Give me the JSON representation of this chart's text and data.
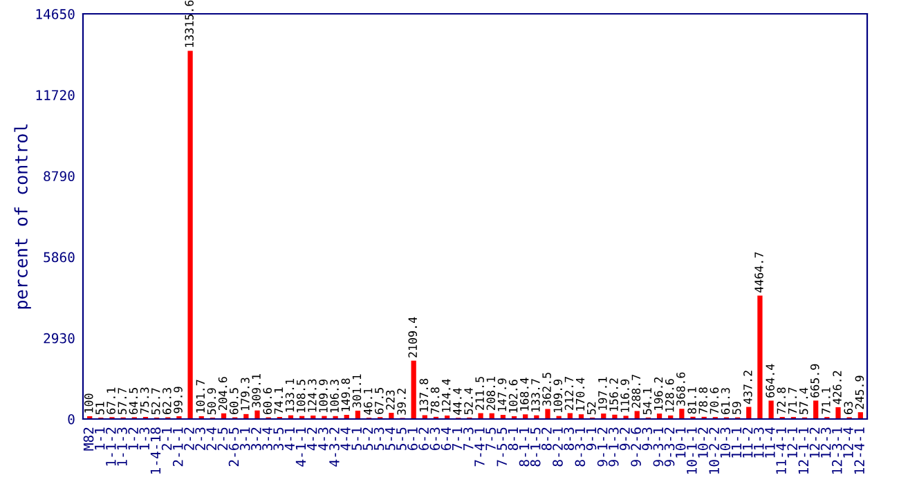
{
  "chart_data": {
    "type": "bar",
    "ylabel": "percent of control",
    "categories": [
      "M82",
      "1-1",
      "1-1-2",
      "1-1-3",
      "1-2",
      "1-3",
      "1-4-18",
      "2-1",
      "2-1-1",
      "2-2",
      "2-3",
      "2-4",
      "2-5",
      "2-6-5",
      "3-1",
      "3-2",
      "3-4",
      "3-5",
      "4-1",
      "4-1-1",
      "4-2",
      "4-3",
      "4-3-2",
      "4-4",
      "5-1",
      "5-2",
      "5-3",
      "5-4",
      "5-5",
      "6-1",
      "6-2",
      "6-3",
      "6-4",
      "7-1",
      "7-3",
      "7-4-1",
      "7-5",
      "7-5-5",
      "8-1",
      "8-1-1",
      "8-1-5",
      "8-2",
      "8-2-1",
      "8-3",
      "8-3-1",
      "9-1",
      "9-1-2",
      "9-1-3",
      "9-2",
      "9-2-6",
      "9-3",
      "9-3-1",
      "9-3-2",
      "10-1",
      "10-1-1",
      "10-2",
      "10-2-2",
      "10-3",
      "11-1",
      "11-2",
      "11-3",
      "11-4",
      "11-4-1",
      "12-1",
      "12-1-1",
      "12-2",
      "12-3",
      "12-3-1",
      "12-4",
      "12-4-1"
    ],
    "values": [
      100,
      51,
      67.1,
      57.7,
      64.5,
      75.3,
      52.7,
      62.3,
      99.9,
      13315.6,
      101.7,
      50.9,
      204.6,
      60.5,
      179.3,
      309.1,
      60.6,
      74.1,
      133.1,
      108.5,
      124.3,
      109.9,
      106.3,
      149.8,
      301.1,
      46.1,
      67.5,
      223,
      39.2,
      2109.4,
      137.8,
      78.8,
      124.4,
      44.4,
      52.4,
      211.5,
      208.1,
      147.9,
      102.6,
      168.4,
      133.7,
      362.5,
      109.9,
      212.7,
      170.4,
      52,
      197.1,
      156.2,
      116.9,
      288.7,
      54.1,
      196.2,
      128.6,
      368.6,
      81.1,
      78.8,
      70.6,
      61.3,
      59,
      437.2,
      4464.7,
      664.4,
      72.8,
      71.7,
      57.4,
      665.9,
      71.1,
      426.2,
      63,
      245.9
    ],
    "color": "#ff0000",
    "data_labels": true,
    "ylim": [
      0,
      14650
    ],
    "yticks": [
      0,
      2930,
      5860,
      8790,
      11720,
      14650
    ],
    "grid": false,
    "legend": false
  }
}
